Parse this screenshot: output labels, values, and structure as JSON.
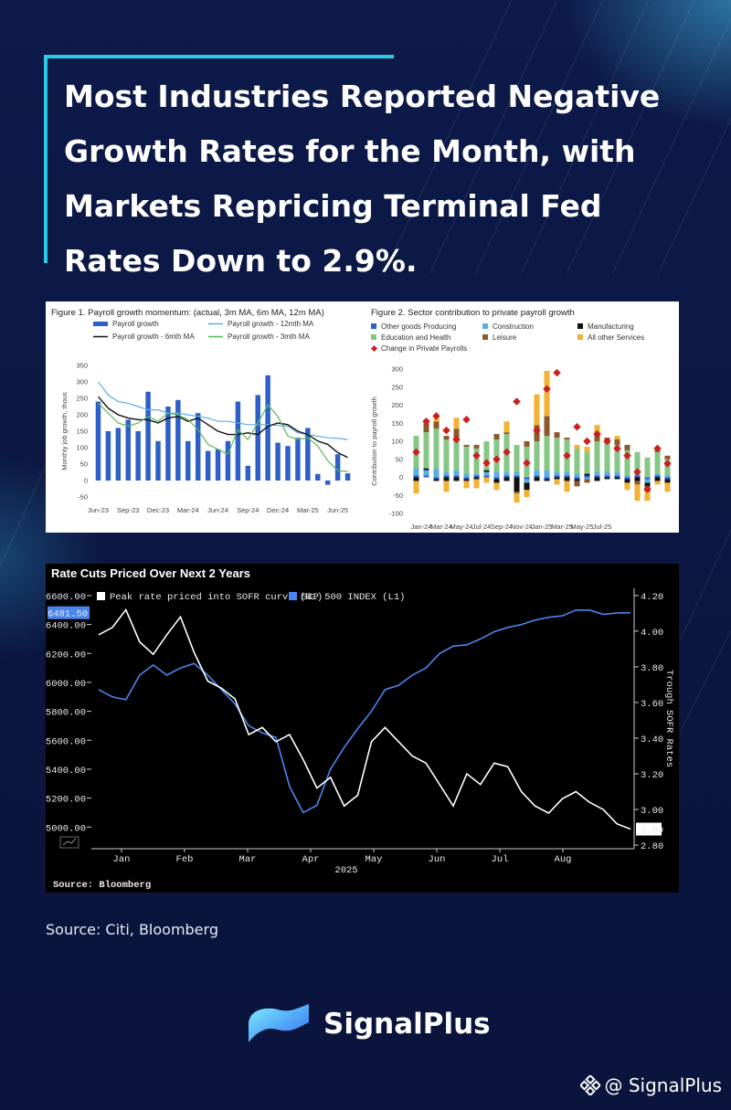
{
  "headline": "Most Industries Reported Negative Growth Rates for the Month, with Markets Repricing Terminal Fed Rates Down to 2.9%.",
  "source_text": "Source: Citi, Bloomberg",
  "brand": {
    "name": "SignalPlus",
    "handle": "@ SignalPlus"
  },
  "colors": {
    "background": "#0b1640",
    "accent": "#2ec7e6",
    "sp_blue": "#4a86ef",
    "sofr_white": "#ffffff"
  },
  "chart_data": [
    {
      "type": "bar",
      "title": "Figure 1. Payroll growth momentum: (actual, 3m MA, 6m MA, 12m MA)",
      "ylabel": "Monthly job growth, thous",
      "ylim": [
        -50,
        350
      ],
      "yticks": [
        350,
        300,
        250,
        200,
        150,
        100,
        50,
        0,
        -50
      ],
      "x_tick_labels": [
        "Jun-23",
        "Sep-23",
        "Dec-23",
        "Mar-24",
        "Jun-24",
        "Sep-24",
        "Dec-24",
        "Mar-25",
        "Jun-25"
      ],
      "legend": [
        "Payroll growth",
        "Payroll growth - 12mth MA",
        "Payroll growth - 6mth MA",
        "Payroll growth - 3mth MA"
      ],
      "series": [
        {
          "name": "Payroll growth",
          "kind": "bar",
          "color": "#2e5fc9",
          "values": [
            240,
            150,
            160,
            185,
            150,
            270,
            120,
            225,
            245,
            120,
            205,
            90,
            95,
            120,
            240,
            45,
            260,
            320,
            115,
            105,
            130,
            160,
            20,
            -13,
            80,
            22
          ]
        },
        {
          "name": "Payroll growth - 12mth MA",
          "kind": "line",
          "color": "#5aaee3",
          "values": [
            300,
            260,
            240,
            235,
            225,
            215,
            215,
            205,
            205,
            200,
            195,
            190,
            180,
            180,
            175,
            170,
            170,
            170,
            168,
            165,
            145,
            140,
            135,
            130,
            128,
            125
          ]
        },
        {
          "name": "Payroll growth - 6mth MA",
          "kind": "line",
          "color": "#111111",
          "values": [
            255,
            220,
            200,
            190,
            185,
            185,
            175,
            190,
            195,
            180,
            190,
            170,
            150,
            140,
            140,
            145,
            140,
            165,
            175,
            170,
            150,
            140,
            120,
            110,
            85,
            70
          ]
        },
        {
          "name": "Payroll growth - 3mth MA",
          "kind": "line",
          "color": "#55bb55",
          "values": [
            235,
            205,
            175,
            165,
            175,
            195,
            180,
            205,
            200,
            185,
            155,
            110,
            95,
            80,
            155,
            125,
            175,
            230,
            195,
            135,
            125,
            130,
            105,
            60,
            30,
            28
          ]
        }
      ]
    },
    {
      "type": "bar",
      "title": "Figure 2. Sector contribution to private payroll growth",
      "ylabel": "Contribution to payroll growth",
      "ylim": [
        -100,
        300
      ],
      "yticks": [
        300,
        250,
        200,
        150,
        100,
        50,
        0,
        -50,
        -100
      ],
      "x_tick_labels": [
        "Jan-24",
        "Mar-24",
        "May-24",
        "Jul-24",
        "Sep-24",
        "Nov-24",
        "Jan-25",
        "Mar-25",
        "May-25",
        "Jul-25"
      ],
      "legend": [
        "Other goods Producing",
        "Construction",
        "Manufacturing",
        "Education and Health",
        "Leisure",
        "All other Services",
        "Change in  Private Payrolls"
      ],
      "series": [
        {
          "name": "Other goods Producing",
          "color": "#2e5fc9",
          "values": [
            5,
            5,
            -5,
            5,
            5,
            -5,
            5,
            5,
            -5,
            5,
            5,
            -5,
            5,
            -5,
            5,
            5,
            -5,
            5,
            5,
            5,
            5,
            -5,
            5,
            -5,
            5,
            -5
          ]
        },
        {
          "name": "Construction",
          "color": "#5aaee3",
          "values": [
            20,
            15,
            25,
            10,
            15,
            10,
            5,
            10,
            15,
            10,
            10,
            -10,
            15,
            20,
            10,
            10,
            10,
            -5,
            10,
            10,
            10,
            5,
            5,
            -10,
            5,
            5
          ]
        },
        {
          "name": "Manufacturing",
          "color": "#111111",
          "values": [
            -10,
            5,
            -5,
            -10,
            -10,
            -5,
            -5,
            5,
            -10,
            -10,
            -40,
            -20,
            -10,
            -5,
            -5,
            -10,
            -5,
            5,
            -10,
            -5,
            -5,
            -10,
            -10,
            -10,
            -10,
            -10
          ]
        },
        {
          "name": "Education and Health",
          "color": "#86c785",
          "values": [
            90,
            100,
            110,
            90,
            80,
            75,
            70,
            80,
            90,
            105,
            75,
            85,
            80,
            95,
            95,
            90,
            70,
            60,
            85,
            80,
            75,
            70,
            60,
            55,
            60,
            45
          ]
        },
        {
          "name": "Leisure",
          "color": "#8a5a2c",
          "values": [
            0,
            25,
            20,
            10,
            35,
            5,
            10,
            0,
            15,
            5,
            -5,
            15,
            45,
            55,
            15,
            5,
            -15,
            -10,
            25,
            15,
            15,
            15,
            -10,
            -15,
            5,
            10
          ]
        },
        {
          "name": "All other Services",
          "color": "#f2b233",
          "values": [
            -35,
            10,
            10,
            -30,
            30,
            -20,
            -25,
            -15,
            -20,
            30,
            -25,
            -20,
            85,
            125,
            -15,
            -30,
            10,
            15,
            20,
            0,
            10,
            -20,
            -45,
            -25,
            -10,
            -25
          ]
        },
        {
          "name": "Change in  Private Payrolls",
          "kind": "marker",
          "color": "#cc1f1f",
          "values": [
            70,
            155,
            170,
            130,
            105,
            160,
            60,
            40,
            50,
            70,
            210,
            40,
            130,
            245,
            290,
            60,
            140,
            100,
            120,
            100,
            80,
            60,
            15,
            -33,
            80,
            38
          ]
        }
      ]
    },
    {
      "type": "line",
      "title": "Rate Cuts Priced Over Next 2 Years",
      "source": "Source: Bloomberg",
      "year_label": "2025",
      "x_tick_labels": [
        "Jan",
        "Feb",
        "Mar",
        "Apr",
        "May",
        "Jun",
        "Jul",
        "Aug"
      ],
      "left_axis": {
        "label": "",
        "ylim": [
          4850,
          6650
        ],
        "ticks": [
          "6600.00",
          "6400.00",
          "6200.00",
          "6000.00",
          "5800.00",
          "5600.00",
          "5400.00",
          "5200.00",
          "5000.00"
        ],
        "tick_values": [
          6600,
          6400,
          6200,
          6000,
          5800,
          5600,
          5400,
          5200,
          5000
        ]
      },
      "right_axis": {
        "label": "Trough SOFR Rates",
        "ylim": [
          2.78,
          4.24
        ],
        "ticks": [
          "4.20",
          "4.00",
          "3.80",
          "3.60",
          "3.40",
          "3.20",
          "3.00",
          "2.80"
        ],
        "tick_values": [
          4.2,
          4.0,
          3.8,
          3.6,
          3.4,
          3.2,
          3.0,
          2.8
        ]
      },
      "last_value_left": "6481.50",
      "last_value_right": "2.89",
      "series": [
        {
          "name": "Peak rate priced into SOFR curve (R1)",
          "color": "#ffffff",
          "axis": "right",
          "values": [
            3.98,
            4.02,
            4.12,
            3.94,
            3.87,
            3.98,
            4.08,
            3.88,
            3.72,
            3.68,
            3.62,
            3.42,
            3.46,
            3.38,
            3.42,
            3.28,
            3.12,
            3.18,
            3.02,
            3.08,
            3.38,
            3.46,
            3.38,
            3.3,
            3.26,
            3.14,
            3.02,
            3.2,
            3.14,
            3.26,
            3.24,
            3.1,
            3.02,
            2.98,
            3.06,
            3.1,
            3.04,
            3.0,
            2.92,
            2.89
          ]
        },
        {
          "name": "S&P 500 INDEX (L1)",
          "color": "#4a86ef",
          "axis": "left",
          "values": [
            5950,
            5900,
            5880,
            6050,
            6120,
            6050,
            6100,
            6130,
            6050,
            5950,
            5850,
            5700,
            5650,
            5620,
            5280,
            5100,
            5150,
            5400,
            5550,
            5680,
            5800,
            5950,
            5980,
            6050,
            6100,
            6200,
            6250,
            6260,
            6300,
            6350,
            6380,
            6400,
            6430,
            6450,
            6460,
            6500,
            6500,
            6470,
            6480,
            6481.5
          ]
        }
      ]
    }
  ]
}
